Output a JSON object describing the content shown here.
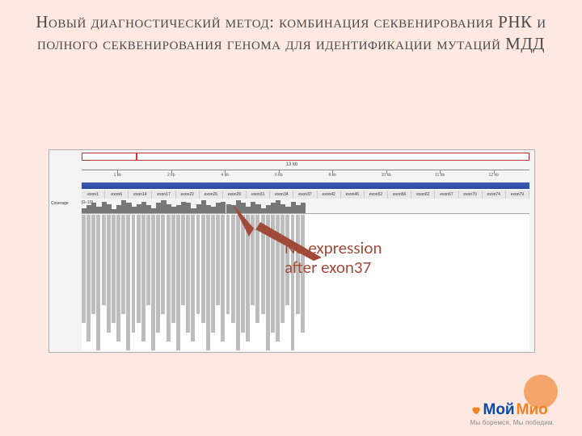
{
  "title": "Новый диагностический метод: комбинация секвенирования РНК и полного секвенирования генома для идентификации мутаций МДД",
  "annotation_line1": "No expression",
  "annotation_line2": "after exon37",
  "browser": {
    "scale_label": "13 kb",
    "coverage_label": "Coverage",
    "coverage_scale": "[0–10]",
    "ideogram_mark_pct": 12,
    "ruler_ticks": [
      {
        "pct": 8,
        "label": "1 kb"
      },
      {
        "pct": 20,
        "label": "2 kb"
      },
      {
        "pct": 32,
        "label": "4 kb"
      },
      {
        "pct": 44,
        "label": "6 kb"
      },
      {
        "pct": 56,
        "label": "8 kb"
      },
      {
        "pct": 68,
        "label": "10 kb"
      },
      {
        "pct": 80,
        "label": "11 kb"
      },
      {
        "pct": 92,
        "label": "12 kb"
      }
    ],
    "exon_labels": [
      "exon1",
      "exon6",
      "exon14",
      "exon17",
      "exon22",
      "exon26",
      "exon29",
      "exon31",
      "exon34",
      "exon37",
      "exon42",
      "exon46",
      "exon52",
      "exon56",
      "exon62",
      "exon67",
      "exon70",
      "exon74",
      "exon79"
    ],
    "drop_index": 9,
    "coverage_values": [
      4,
      6,
      8,
      5,
      9,
      7,
      3,
      6,
      10,
      8,
      5,
      7,
      9,
      6,
      4,
      8,
      10,
      7,
      5,
      6,
      9,
      8,
      4,
      7,
      10,
      6,
      5,
      8,
      9,
      7,
      6,
      10,
      8,
      5,
      9,
      7,
      4,
      6,
      8,
      10,
      7,
      5,
      9,
      6,
      8,
      0,
      0,
      0,
      0,
      0,
      0,
      0,
      0,
      0,
      0,
      0,
      0,
      0,
      0,
      0,
      0,
      0,
      0,
      0,
      0,
      0,
      0,
      0,
      0,
      0,
      0,
      0,
      0,
      0,
      0,
      0,
      0,
      0,
      0,
      0,
      0,
      0,
      0,
      0,
      0,
      0,
      0,
      0,
      0,
      0
    ],
    "coverage_max": 10,
    "read_depths": [
      12,
      14,
      11,
      15,
      10,
      13,
      12,
      14,
      11,
      15,
      13,
      12,
      14,
      10,
      15,
      13,
      11,
      14,
      12,
      15,
      10,
      13,
      14,
      11,
      12,
      15,
      13,
      10,
      14,
      11,
      12,
      15,
      13,
      14,
      10,
      12,
      11,
      15,
      13,
      14,
      12,
      10,
      15,
      11,
      13,
      0,
      0,
      0,
      0,
      0,
      0,
      0,
      0,
      0,
      0,
      0,
      0,
      0,
      0,
      0,
      0,
      0,
      0,
      0,
      0,
      0,
      0,
      0,
      0,
      0,
      0,
      0,
      0,
      0,
      0,
      0,
      0,
      0,
      0,
      0,
      0,
      0,
      0,
      0,
      0,
      0,
      0,
      0,
      0,
      0
    ],
    "read_max": 15
  },
  "colors": {
    "slide_bg": "#fde9e1",
    "title_text": "#4a4a4a",
    "arrow_fill": "#a24a3a",
    "annot_text": "#a24a3a",
    "refseq": "#2a4aa5",
    "coverage_bar": "#777777",
    "read_bar": "#bdbdbd",
    "dot": "#f4a56b",
    "logo_blue": "#0a4aa8",
    "logo_orange": "#f58220"
  },
  "logo": {
    "part1": "Мой",
    "part2": "Мио",
    "tagline": "Мы боремся, Мы победим."
  }
}
